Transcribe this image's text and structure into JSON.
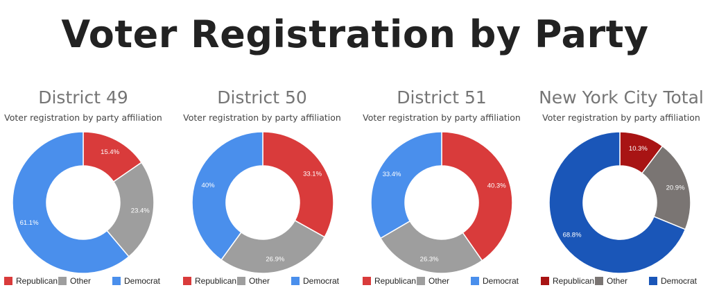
{
  "page": {
    "title": "Voter Registration by Party"
  },
  "chart_data": [
    {
      "type": "pie",
      "title": "District 49",
      "subtitle": "Voter registration by party affiliation",
      "categories": [
        "Republican",
        "Other",
        "Democrat"
      ],
      "values": [
        15.4,
        23.4,
        61.1
      ],
      "labels": [
        "15.4%",
        "23.4%",
        "61.1%"
      ],
      "colors": [
        "#d93b3b",
        "#9e9e9e",
        "#4a8fec"
      ],
      "legend": "bottom"
    },
    {
      "type": "pie",
      "title": "District 50",
      "subtitle": "Voter registration by party affiliation",
      "categories": [
        "Republican",
        "Other",
        "Democrat"
      ],
      "values": [
        33.1,
        26.9,
        40
      ],
      "labels": [
        "33.1%",
        "26.9%",
        "40%"
      ],
      "colors": [
        "#d93b3b",
        "#9e9e9e",
        "#4a8fec"
      ],
      "legend": "bottom"
    },
    {
      "type": "pie",
      "title": "District 51",
      "subtitle": "Voter registration by party affiliation",
      "categories": [
        "Republican",
        "Other",
        "Democrat"
      ],
      "values": [
        40.3,
        26.3,
        33.4
      ],
      "labels": [
        "40.3%",
        "26.3%",
        "33.4%"
      ],
      "colors": [
        "#d93b3b",
        "#9e9e9e",
        "#4a8fec"
      ],
      "legend": "bottom"
    },
    {
      "type": "pie",
      "title": "New York City Total",
      "subtitle": "Voter registration by party affiliation",
      "categories": [
        "Republican",
        "Other",
        "Democrat"
      ],
      "values": [
        10.3,
        20.9,
        68.8
      ],
      "labels": [
        "10.3%",
        "20.9%",
        "68.8%"
      ],
      "colors": [
        "#a81414",
        "#7a7573",
        "#1a56b8"
      ],
      "legend": "bottom"
    }
  ]
}
